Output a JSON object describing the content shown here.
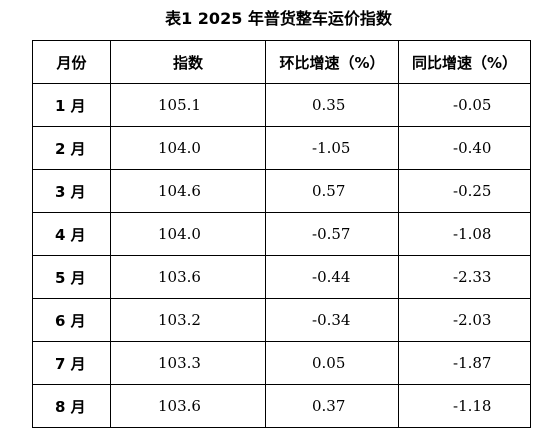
{
  "caption": "表1  2025 年普货整车运价指数",
  "table": {
    "headers": [
      "月份",
      "指数",
      "环比增速（%）",
      "同比增速（%）"
    ],
    "rows": [
      {
        "month": "1 月",
        "index": "105.1",
        "mom": "0.35",
        "yoy": "-0.05"
      },
      {
        "month": "2 月",
        "index": "104.0",
        "mom": "-1.05",
        "yoy": "-0.40"
      },
      {
        "month": "3 月",
        "index": "104.6",
        "mom": "0.57",
        "yoy": "-0.25"
      },
      {
        "month": "4 月",
        "index": "104.0",
        "mom": "-0.57",
        "yoy": "-1.08"
      },
      {
        "month": "5 月",
        "index": "103.6",
        "mom": "-0.44",
        "yoy": "-2.33"
      },
      {
        "month": "6 月",
        "index": "103.2",
        "mom": "-0.34",
        "yoy": "-2.03"
      },
      {
        "month": "7 月",
        "index": "103.3",
        "mom": "0.05",
        "yoy": "-1.87"
      },
      {
        "month": "8 月",
        "index": "103.6",
        "mom": "0.37",
        "yoy": "-1.18"
      }
    ]
  }
}
